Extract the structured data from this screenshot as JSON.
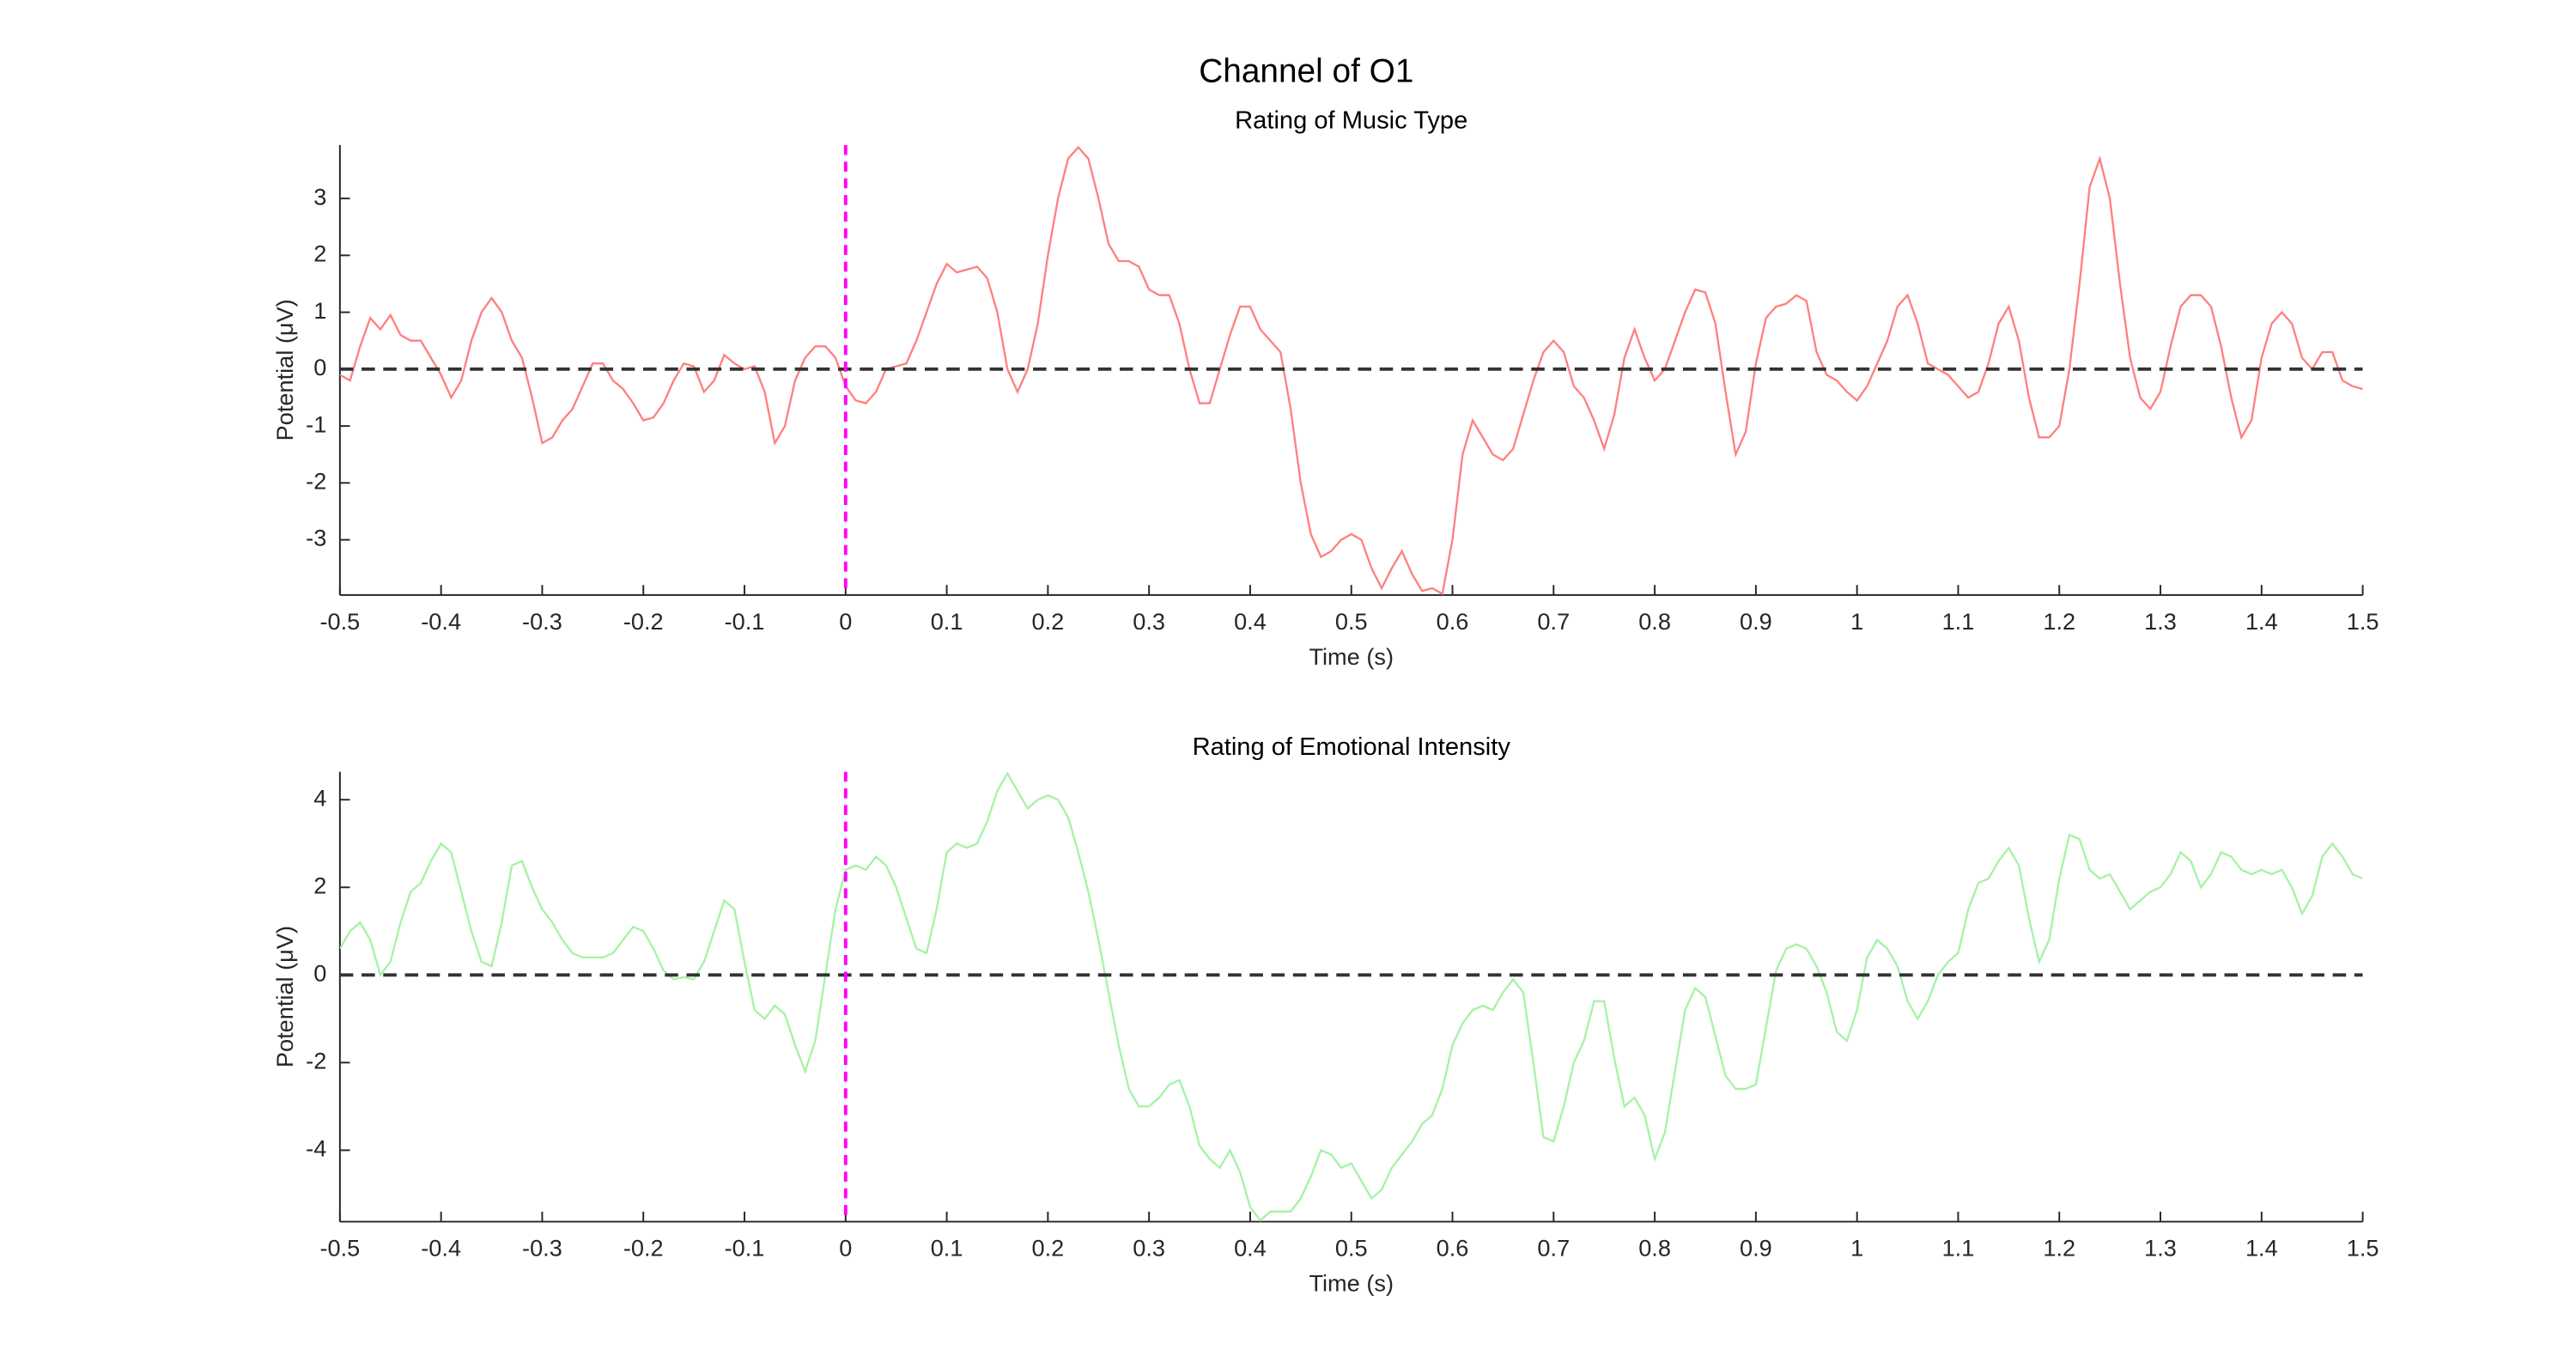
{
  "title": "Channel of O1",
  "chart_data": [
    {
      "type": "line",
      "title": "Rating of Music Type",
      "x_label": "Time (s)",
      "y_label": "Potential (μV)",
      "x": [
        -0.5,
        -0.49,
        -0.48,
        -0.47,
        -0.46,
        -0.45,
        -0.44,
        -0.43,
        -0.42,
        -0.41,
        -0.4,
        -0.39,
        -0.38,
        -0.37,
        -0.36,
        -0.35,
        -0.34,
        -0.33,
        -0.32,
        -0.31,
        -0.3,
        -0.29,
        -0.28,
        -0.27,
        -0.26,
        -0.25,
        -0.24,
        -0.23,
        -0.22,
        -0.21,
        -0.2,
        -0.19,
        -0.18,
        -0.17,
        -0.16,
        -0.15,
        -0.14,
        -0.13,
        -0.12,
        -0.11,
        -0.1,
        -0.09,
        -0.08,
        -0.07,
        -0.06,
        -0.05,
        -0.04,
        -0.03,
        -0.02,
        -0.01,
        0,
        0.01,
        0.02,
        0.03,
        0.04,
        0.05,
        0.06,
        0.07,
        0.08,
        0.09,
        0.1,
        0.11,
        0.12,
        0.13,
        0.14,
        0.15,
        0.16,
        0.17,
        0.18,
        0.19,
        0.2,
        0.21,
        0.22,
        0.23,
        0.24,
        0.25,
        0.26,
        0.27,
        0.28,
        0.29,
        0.3,
        0.31,
        0.32,
        0.33,
        0.34,
        0.35,
        0.36,
        0.37,
        0.38,
        0.39,
        0.4,
        0.41,
        0.42,
        0.43,
        0.44,
        0.45,
        0.46,
        0.47,
        0.48,
        0.49,
        0.5,
        0.51,
        0.52,
        0.53,
        0.54,
        0.55,
        0.56,
        0.57,
        0.58,
        0.59,
        0.6,
        0.61,
        0.62,
        0.63,
        0.64,
        0.65,
        0.66,
        0.67,
        0.68,
        0.69,
        0.7,
        0.71,
        0.72,
        0.73,
        0.74,
        0.75,
        0.76,
        0.77,
        0.78,
        0.79,
        0.8,
        0.81,
        0.82,
        0.83,
        0.84,
        0.85,
        0.86,
        0.87,
        0.88,
        0.89,
        0.9,
        0.91,
        0.92,
        0.93,
        0.94,
        0.95,
        0.96,
        0.97,
        0.98,
        0.99,
        1,
        1.01,
        1.02,
        1.03,
        1.04,
        1.05,
        1.06,
        1.07,
        1.08,
        1.09,
        1.1,
        1.11,
        1.12,
        1.13,
        1.14,
        1.15,
        1.16,
        1.17,
        1.18,
        1.19,
        1.2,
        1.21,
        1.22,
        1.23,
        1.24,
        1.25,
        1.26,
        1.27,
        1.28,
        1.29,
        1.3,
        1.31,
        1.32,
        1.33,
        1.34,
        1.35,
        1.36,
        1.37,
        1.38,
        1.39,
        1.4,
        1.41,
        1.42,
        1.43,
        1.44,
        1.45,
        1.46,
        1.47,
        1.48,
        1.49,
        1.5
      ],
      "values": [
        -0.1,
        -0.2,
        0.4,
        0.9,
        0.7,
        0.95,
        0.6,
        0.5,
        0.5,
        0.2,
        -0.1,
        -0.5,
        -0.2,
        0.5,
        1.0,
        1.25,
        1.0,
        0.5,
        0.2,
        -0.5,
        -1.3,
        -1.2,
        -0.9,
        -0.7,
        -0.3,
        0.1,
        0.1,
        -0.2,
        -0.35,
        -0.6,
        -0.9,
        -0.85,
        -0.6,
        -0.2,
        0.1,
        0.05,
        -0.4,
        -0.2,
        0.25,
        0.1,
        0.0,
        0.05,
        -0.4,
        -1.3,
        -1.0,
        -0.2,
        0.2,
        0.4,
        0.4,
        0.2,
        -0.3,
        -0.55,
        -0.6,
        -0.4,
        0.0,
        0.05,
        0.1,
        0.5,
        1.0,
        1.5,
        1.85,
        1.7,
        1.75,
        1.8,
        1.6,
        1.0,
        0.0,
        -0.4,
        0.0,
        0.8,
        2.0,
        3.0,
        3.7,
        3.9,
        3.7,
        3.0,
        2.2,
        1.9,
        1.9,
        1.8,
        1.4,
        1.3,
        1.3,
        0.8,
        0.0,
        -0.6,
        -0.6,
        0.0,
        0.6,
        1.1,
        1.1,
        0.7,
        0.5,
        0.3,
        -0.7,
        -2.0,
        -2.9,
        -3.3,
        -3.2,
        -3.0,
        -2.9,
        -3.0,
        -3.5,
        -3.85,
        -3.5,
        -3.2,
        -3.6,
        -3.9,
        -3.85,
        -3.95,
        -3.0,
        -1.5,
        -0.9,
        -1.2,
        -1.5,
        -1.6,
        -1.4,
        -0.8,
        -0.2,
        0.3,
        0.5,
        0.3,
        -0.3,
        -0.5,
        -0.9,
        -1.4,
        -0.8,
        0.2,
        0.7,
        0.2,
        -0.2,
        0.0,
        0.5,
        1.0,
        1.4,
        1.35,
        0.8,
        -0.4,
        -1.5,
        -1.1,
        0.1,
        0.9,
        1.1,
        1.15,
        1.3,
        1.2,
        0.3,
        -0.1,
        -0.2,
        -0.4,
        -0.55,
        -0.3,
        0.1,
        0.5,
        1.1,
        1.3,
        0.8,
        0.1,
        0.0,
        -0.1,
        -0.3,
        -0.5,
        -0.4,
        0.1,
        0.8,
        1.1,
        0.5,
        -0.5,
        -1.2,
        -1.2,
        -1.0,
        0.0,
        1.5,
        3.2,
        3.7,
        3.0,
        1.5,
        0.2,
        -0.5,
        -0.7,
        -0.4,
        0.4,
        1.1,
        1.3,
        1.3,
        1.1,
        0.4,
        -0.5,
        -1.2,
        -0.9,
        0.2,
        0.8,
        1.0,
        0.8,
        0.2,
        0.0,
        0.3,
        0.3,
        -0.2,
        -0.3,
        -0.35
      ],
      "color": "#ff8080",
      "hline": 0,
      "hline_color": "#333333",
      "vline": 0,
      "vline_color": "#ff00ff",
      "xlim": [
        -0.5,
        1.5
      ],
      "xticks": [
        -0.5,
        -0.4,
        -0.3,
        -0.2,
        -0.1,
        0,
        0.1,
        0.2,
        0.3,
        0.4,
        0.5,
        0.6,
        0.7,
        0.8,
        0.9,
        1,
        1.1,
        1.2,
        1.3,
        1.4,
        1.5
      ],
      "ylim": [
        -3.97,
        3.94
      ],
      "yticks": [
        -3,
        -2,
        -1,
        0,
        1,
        2,
        3
      ],
      "grid": false
    },
    {
      "type": "line",
      "title": "Rating of Emotional Intensity",
      "x_label": "Time (s)",
      "y_label": "Potential (μV)",
      "x": [
        -0.5,
        -0.49,
        -0.48,
        -0.47,
        -0.46,
        -0.45,
        -0.44,
        -0.43,
        -0.42,
        -0.41,
        -0.4,
        -0.39,
        -0.38,
        -0.37,
        -0.36,
        -0.35,
        -0.34,
        -0.33,
        -0.32,
        -0.31,
        -0.3,
        -0.29,
        -0.28,
        -0.27,
        -0.26,
        -0.25,
        -0.24,
        -0.23,
        -0.22,
        -0.21,
        -0.2,
        -0.19,
        -0.18,
        -0.17,
        -0.16,
        -0.15,
        -0.14,
        -0.13,
        -0.12,
        -0.11,
        -0.1,
        -0.09,
        -0.08,
        -0.07,
        -0.06,
        -0.05,
        -0.04,
        -0.03,
        -0.02,
        -0.01,
        0,
        0.01,
        0.02,
        0.03,
        0.04,
        0.05,
        0.06,
        0.07,
        0.08,
        0.09,
        0.1,
        0.11,
        0.12,
        0.13,
        0.14,
        0.15,
        0.16,
        0.17,
        0.18,
        0.19,
        0.2,
        0.21,
        0.22,
        0.23,
        0.24,
        0.25,
        0.26,
        0.27,
        0.28,
        0.29,
        0.3,
        0.31,
        0.32,
        0.33,
        0.34,
        0.35,
        0.36,
        0.37,
        0.38,
        0.39,
        0.4,
        0.41,
        0.42,
        0.43,
        0.44,
        0.45,
        0.46,
        0.47,
        0.48,
        0.49,
        0.5,
        0.51,
        0.52,
        0.53,
        0.54,
        0.55,
        0.56,
        0.57,
        0.58,
        0.59,
        0.6,
        0.61,
        0.62,
        0.63,
        0.64,
        0.65,
        0.66,
        0.67,
        0.68,
        0.69,
        0.7,
        0.71,
        0.72,
        0.73,
        0.74,
        0.75,
        0.76,
        0.77,
        0.78,
        0.79,
        0.8,
        0.81,
        0.82,
        0.83,
        0.84,
        0.85,
        0.86,
        0.87,
        0.88,
        0.89,
        0.9,
        0.91,
        0.92,
        0.93,
        0.94,
        0.95,
        0.96,
        0.97,
        0.98,
        0.99,
        1,
        1.01,
        1.02,
        1.03,
        1.04,
        1.05,
        1.06,
        1.07,
        1.08,
        1.09,
        1.1,
        1.11,
        1.12,
        1.13,
        1.14,
        1.15,
        1.16,
        1.17,
        1.18,
        1.19,
        1.2,
        1.21,
        1.22,
        1.23,
        1.24,
        1.25,
        1.26,
        1.27,
        1.28,
        1.29,
        1.3,
        1.31,
        1.32,
        1.33,
        1.34,
        1.35,
        1.36,
        1.37,
        1.38,
        1.39,
        1.4,
        1.41,
        1.42,
        1.43,
        1.44,
        1.45,
        1.46,
        1.47,
        1.48,
        1.49,
        1.5
      ],
      "values": [
        0.6,
        1.0,
        1.2,
        0.8,
        0.0,
        0.3,
        1.2,
        1.9,
        2.1,
        2.6,
        3.0,
        2.8,
        1.9,
        1.0,
        0.3,
        0.2,
        1.2,
        2.5,
        2.6,
        2.0,
        1.5,
        1.2,
        0.8,
        0.5,
        0.4,
        0.4,
        0.4,
        0.5,
        0.8,
        1.1,
        1.0,
        0.6,
        0.1,
        -0.1,
        -0.05,
        -0.1,
        0.3,
        1.0,
        1.7,
        1.5,
        0.3,
        -0.8,
        -1.0,
        -0.7,
        -0.9,
        -1.6,
        -2.2,
        -1.5,
        0.0,
        1.5,
        2.4,
        2.5,
        2.4,
        2.7,
        2.5,
        2.0,
        1.3,
        0.6,
        0.5,
        1.5,
        2.8,
        3.0,
        2.9,
        3.0,
        3.5,
        4.2,
        4.6,
        4.2,
        3.8,
        4.0,
        4.1,
        4.0,
        3.6,
        2.8,
        1.9,
        0.8,
        -0.4,
        -1.6,
        -2.6,
        -3.0,
        -3.0,
        -2.8,
        -2.5,
        -2.4,
        -3.0,
        -3.9,
        -4.2,
        -4.4,
        -4.0,
        -4.5,
        -5.3,
        -5.6,
        -5.4,
        -5.4,
        -5.4,
        -5.1,
        -4.6,
        -4.0,
        -4.1,
        -4.4,
        -4.3,
        -4.7,
        -5.1,
        -4.9,
        -4.4,
        -4.1,
        -3.8,
        -3.4,
        -3.2,
        -2.6,
        -1.6,
        -1.1,
        -0.8,
        -0.7,
        -0.8,
        -0.4,
        -0.1,
        -0.4,
        -2.0,
        -3.7,
        -3.8,
        -3.0,
        -2.0,
        -1.5,
        -0.6,
        -0.6,
        -1.9,
        -3.0,
        -2.8,
        -3.2,
        -4.2,
        -3.6,
        -2.2,
        -0.8,
        -0.3,
        -0.5,
        -1.4,
        -2.3,
        -2.6,
        -2.6,
        -2.5,
        -1.2,
        0.1,
        0.6,
        0.7,
        0.6,
        0.2,
        -0.4,
        -1.3,
        -1.5,
        -0.8,
        0.4,
        0.8,
        0.6,
        0.2,
        -0.6,
        -1.0,
        -0.6,
        0.0,
        0.3,
        0.5,
        1.5,
        2.1,
        2.2,
        2.6,
        2.9,
        2.5,
        1.3,
        0.3,
        0.8,
        2.2,
        3.2,
        3.1,
        2.4,
        2.2,
        2.3,
        1.9,
        1.5,
        1.7,
        1.9,
        2.0,
        2.3,
        2.8,
        2.6,
        2.0,
        2.3,
        2.8,
        2.7,
        2.4,
        2.3,
        2.4,
        2.3,
        2.4,
        2.0,
        1.4,
        1.8,
        2.7,
        3.0,
        2.7,
        2.3,
        2.2
      ],
      "color": "#a6f2a6",
      "hline": 0,
      "hline_color": "#333333",
      "vline": 0,
      "vline_color": "#ff00ff",
      "xlim": [
        -0.5,
        1.5
      ],
      "xticks": [
        -0.5,
        -0.4,
        -0.3,
        -0.2,
        -0.1,
        0,
        0.1,
        0.2,
        0.3,
        0.4,
        0.5,
        0.6,
        0.7,
        0.8,
        0.9,
        1,
        1.1,
        1.2,
        1.3,
        1.4,
        1.5
      ],
      "ylim": [
        -5.63,
        4.64
      ],
      "yticks": [
        -4,
        -2,
        0,
        2,
        4
      ],
      "grid": false
    }
  ]
}
